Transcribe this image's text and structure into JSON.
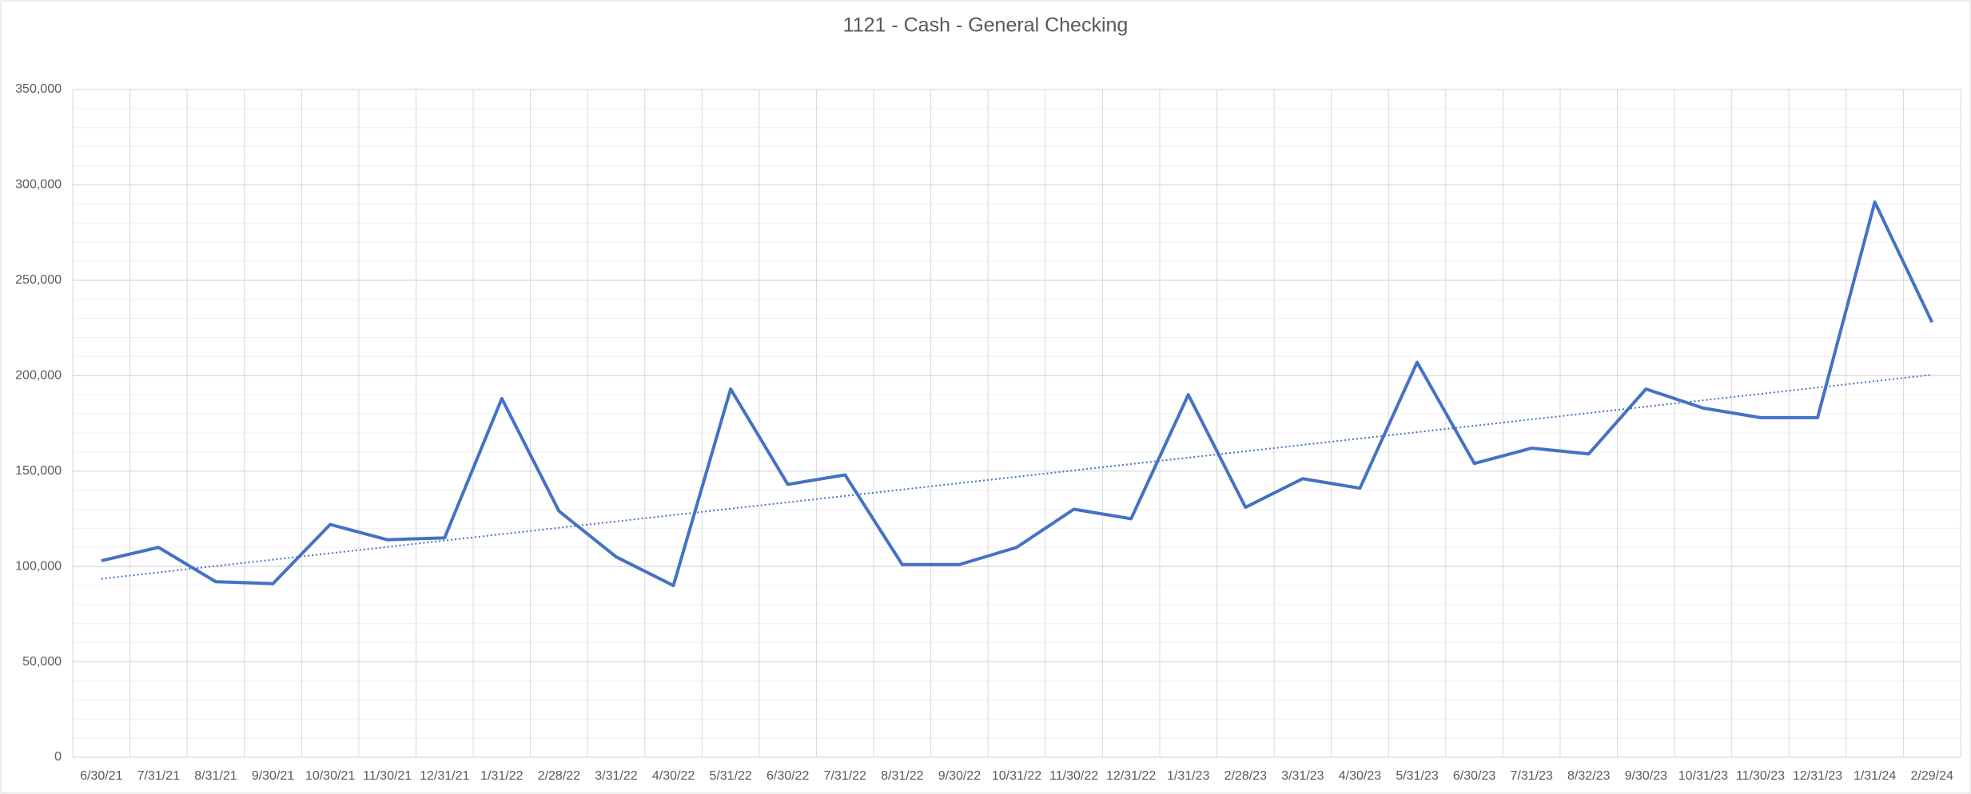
{
  "chart_data": {
    "type": "line",
    "title": "1121 - Cash - General Checking",
    "categories": [
      "6/30/21",
      "7/31/21",
      "8/31/21",
      "9/30/21",
      "10/30/21",
      "11/30/21",
      "12/31/21",
      "1/31/22",
      "2/28/22",
      "3/31/22",
      "4/30/22",
      "5/31/22",
      "6/30/22",
      "7/31/22",
      "8/31/22",
      "9/30/22",
      "10/31/22",
      "11/30/22",
      "12/31/22",
      "1/31/23",
      "2/28/23",
      "3/31/23",
      "4/30/23",
      "5/31/23",
      "6/30/23",
      "7/31/23",
      "8/32/23",
      "9/30/23",
      "10/31/23",
      "11/30/23",
      "12/31/23",
      "1/31/24",
      "2/29/24"
    ],
    "values": [
      103000,
      110000,
      92000,
      91000,
      122000,
      114000,
      115000,
      188000,
      129000,
      105000,
      90000,
      193000,
      143000,
      148000,
      101000,
      101000,
      110000,
      130000,
      125000,
      190000,
      131000,
      146000,
      141000,
      207000,
      154000,
      162000,
      159000,
      193000,
      183000,
      178000,
      178000,
      291000,
      228000
    ],
    "color": "#4472c4",
    "ylim": [
      0,
      350000
    ],
    "yticks": [
      0,
      {
        "value": 50000,
        "label": "50,000"
      },
      {
        "value": 100000,
        "label": "100,000"
      },
      {
        "value": 150000,
        "label": "150,000"
      },
      {
        "value": 200000,
        "label": "200,000"
      },
      {
        "value": 250000,
        "label": "250,000"
      },
      {
        "value": 300000,
        "label": "300,000"
      },
      {
        "value": 350000,
        "label": "350,000"
      }
    ],
    "grid": true,
    "trendline": "linear"
  }
}
